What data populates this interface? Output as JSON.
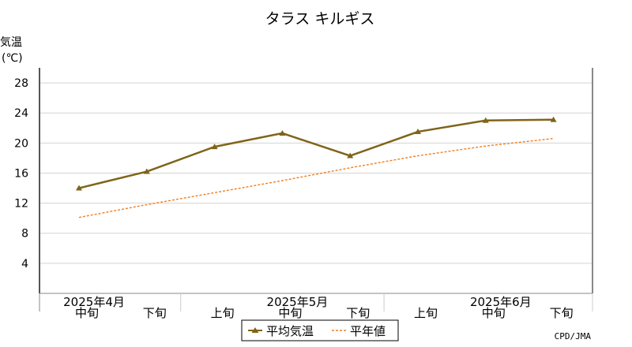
{
  "chart_data": {
    "type": "line",
    "title": "タラス キルギス",
    "ylabel_line1": "気温",
    "ylabel_line2": "(℃)",
    "ylim": [
      0,
      30
    ],
    "yticks": [
      4,
      8,
      12,
      16,
      20,
      24,
      28
    ],
    "grid": true,
    "categories": [
      "中旬",
      "下旬",
      "上旬",
      "中旬",
      "下旬",
      "上旬",
      "中旬",
      "下旬"
    ],
    "month_labels": [
      {
        "label": "2025年4月",
        "index": 0
      },
      {
        "label": "2025年5月",
        "index": 3
      },
      {
        "label": "2025年6月",
        "index": 6
      }
    ],
    "series": [
      {
        "name": "平均気温",
        "values": [
          14.0,
          16.2,
          19.5,
          21.3,
          18.3,
          21.5,
          23.0,
          23.1
        ],
        "color": "#7f6419",
        "style": "solid",
        "marker": "triangle"
      },
      {
        "name": "平年値",
        "values": [
          10.1,
          11.8,
          13.4,
          15.0,
          16.7,
          18.3,
          19.6,
          20.6
        ],
        "color": "#f07f21",
        "style": "dotted"
      }
    ],
    "legend_position": "bottom-center",
    "credit": "CPD/JMA"
  }
}
